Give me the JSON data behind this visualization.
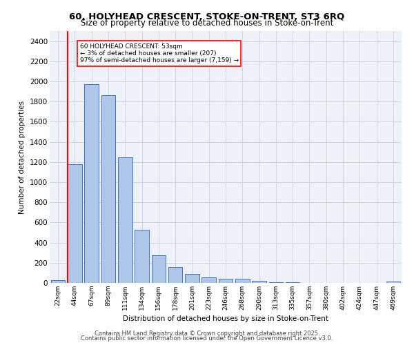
{
  "title1": "60, HOLYHEAD CRESCENT, STOKE-ON-TRENT, ST3 6RQ",
  "title2": "Size of property relative to detached houses in Stoke-on-Trent",
  "xlabel": "Distribution of detached houses by size in Stoke-on-Trent",
  "ylabel": "Number of detached properties",
  "bar_labels": [
    "22sqm",
    "44sqm",
    "67sqm",
    "89sqm",
    "111sqm",
    "134sqm",
    "156sqm",
    "178sqm",
    "201sqm",
    "223sqm",
    "246sqm",
    "268sqm",
    "290sqm",
    "313sqm",
    "335sqm",
    "357sqm",
    "380sqm",
    "402sqm",
    "424sqm",
    "447sqm",
    "469sqm"
  ],
  "bar_values": [
    25,
    1175,
    1975,
    1860,
    1245,
    525,
    275,
    155,
    90,
    55,
    42,
    42,
    18,
    8,
    4,
    3,
    2,
    2,
    1,
    1,
    12
  ],
  "bar_color": "#aec6e8",
  "bar_edgecolor": "#4472c4",
  "redline_x": 1,
  "annotation_text": "60 HOLYHEAD CRESCENT: 53sqm\n← 3% of detached houses are smaller (207)\n97% of semi-detached houses are larger (7,159) →",
  "annotation_box_edgecolor": "red",
  "redline_color": "red",
  "ylim": [
    0,
    2500
  ],
  "yticks": [
    0,
    200,
    400,
    600,
    800,
    1000,
    1200,
    1400,
    1600,
    1800,
    2000,
    2200,
    2400
  ],
  "grid_color": "#d0d8e8",
  "bg_color": "#eef2f8",
  "footer1": "Contains HM Land Registry data © Crown copyright and database right 2025.",
  "footer2": "Contains public sector information licensed under the Open Government Licence v3.0."
}
